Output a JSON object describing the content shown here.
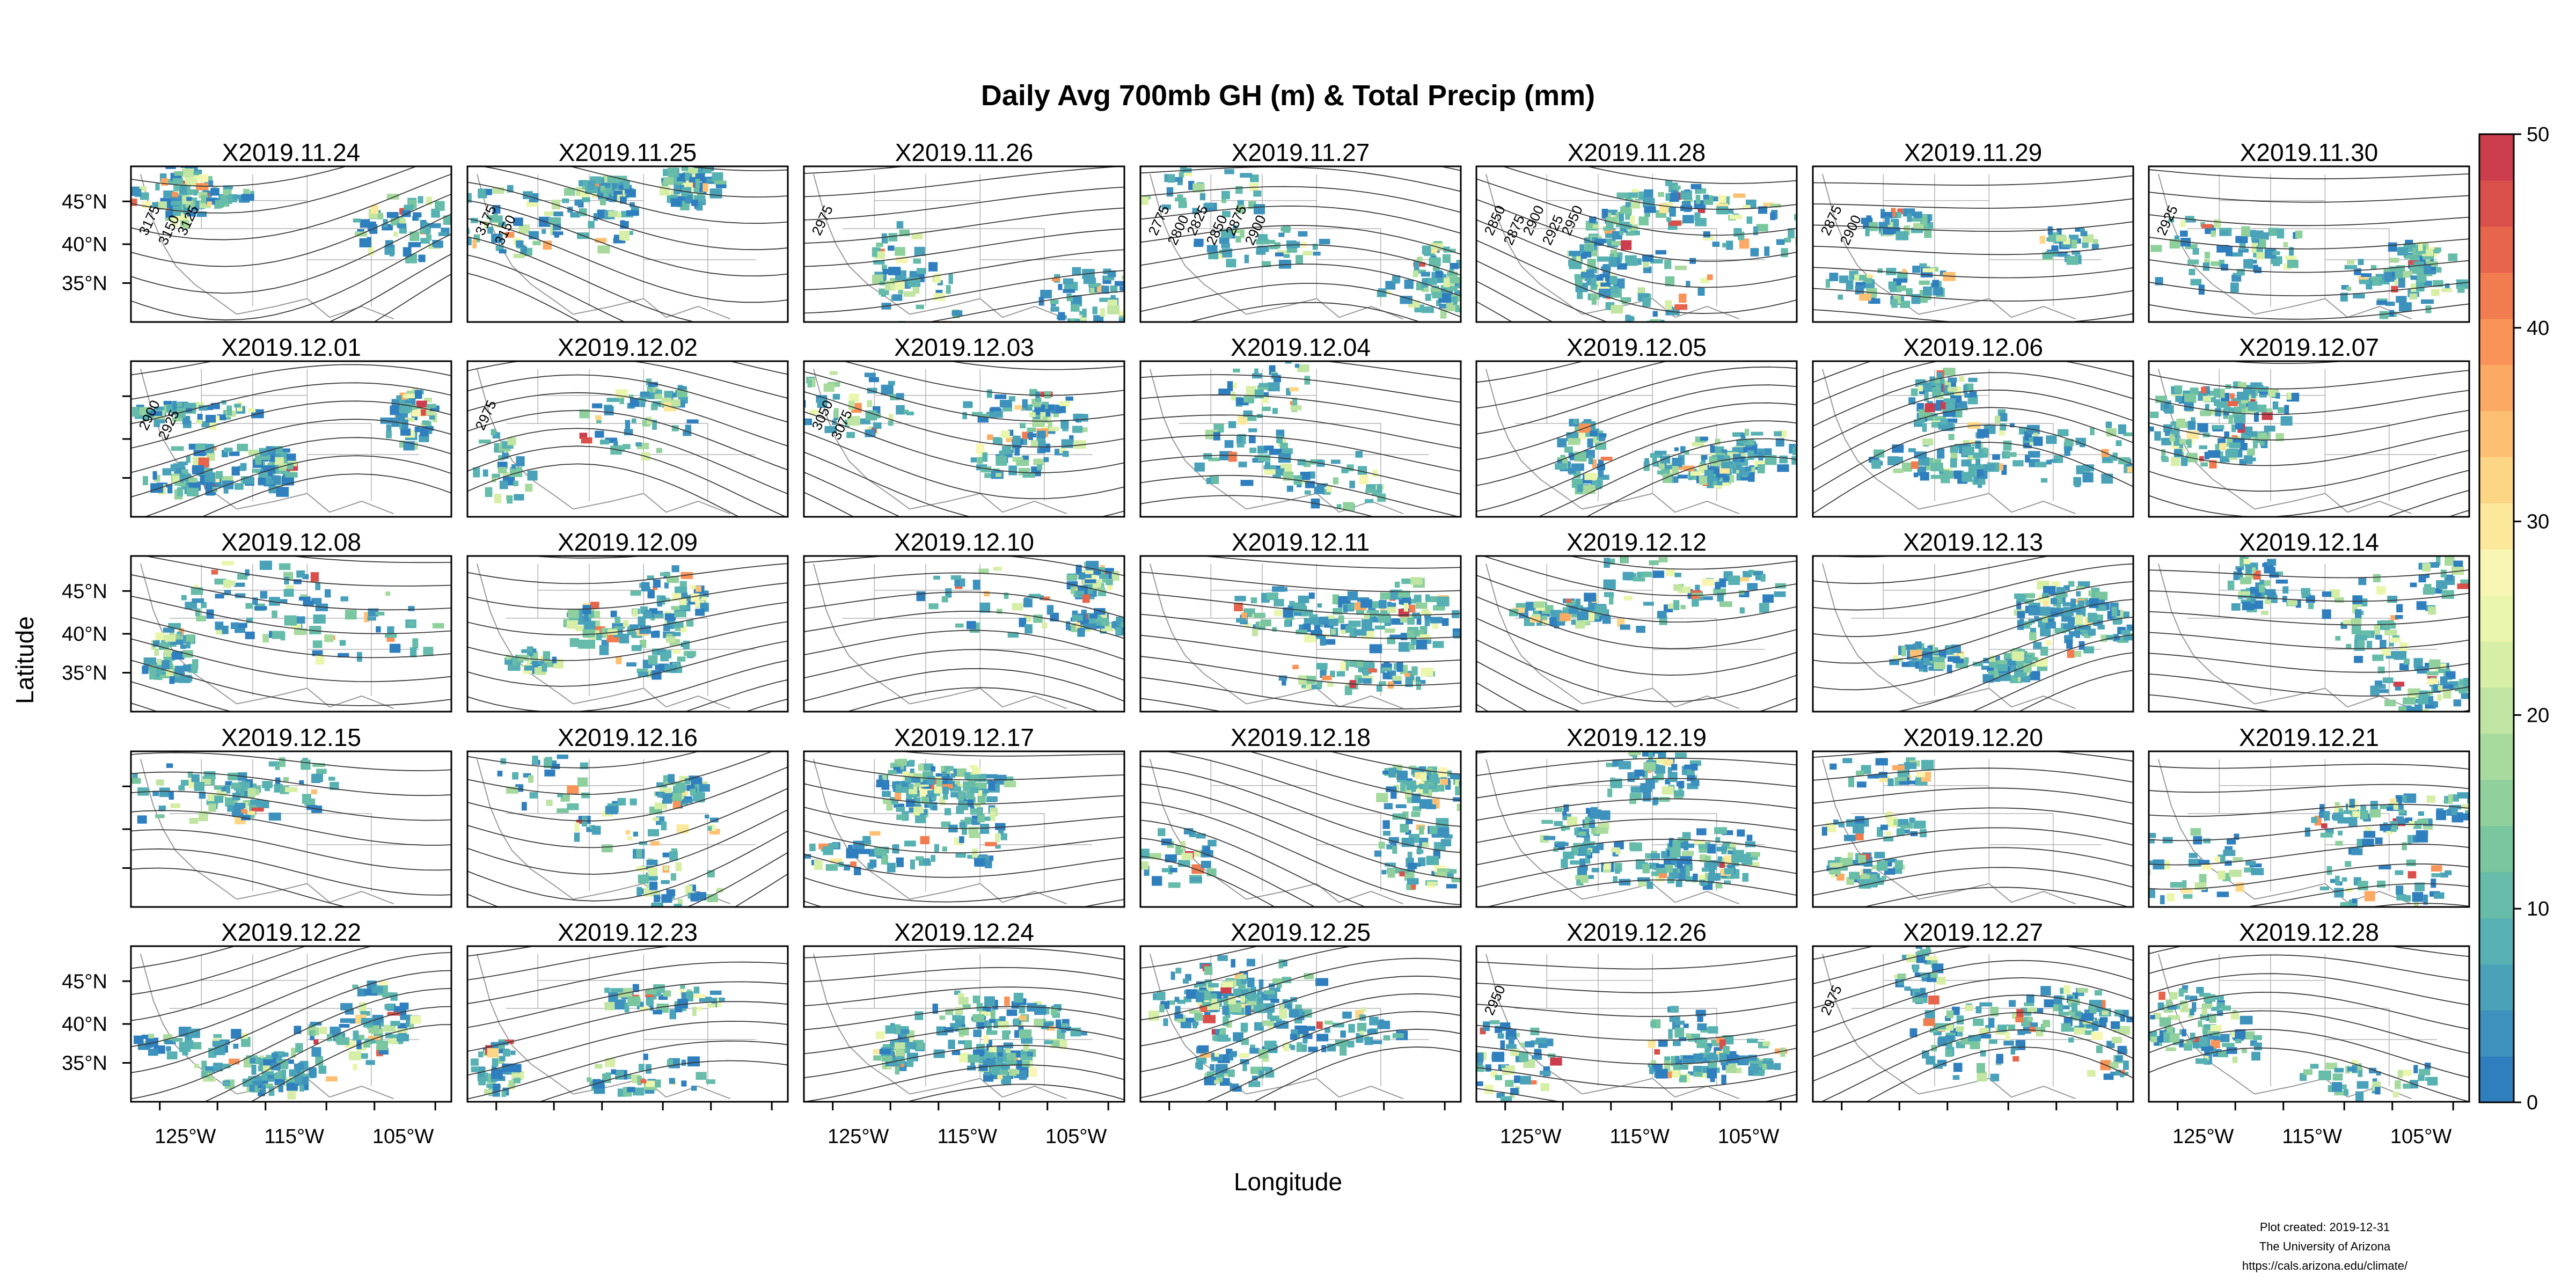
{
  "title": "Daily Avg 700mb GH (m) & Total Precip (mm)",
  "xlabel": "Longitude",
  "ylabel": "Latitude",
  "lat_ticks": [
    "45°N",
    "40°N",
    "35°N"
  ],
  "lon_ticks": [
    "125°W",
    "115°W",
    "105°W"
  ],
  "credit": [
    "Plot created: 2019-12-31",
    "The University of Arizona",
    "https://cals.arizona.edu/climate/"
  ],
  "colorbar": {
    "ticks": [
      "0",
      "10",
      "20",
      "30",
      "40",
      "50"
    ],
    "range": [
      0,
      50
    ],
    "colors": [
      "#2f7fbf",
      "#3d91bd",
      "#4aa2b9",
      "#57b1b2",
      "#66bca8",
      "#79c69f",
      "#90d09d",
      "#a8da9e",
      "#c0e4a1",
      "#d7eea6",
      "#ebf6ad",
      "#f8f6b2",
      "#fbe89a",
      "#fcd585",
      "#fdc073",
      "#fca964",
      "#f99357",
      "#f17c4f",
      "#e6654b",
      "#d9504b",
      "#cc3d4d"
    ]
  },
  "panels": [
    {
      "label": "X2019.11.24",
      "contours": [
        "3175",
        "3150",
        "3125"
      ]
    },
    {
      "label": "X2019.11.25",
      "contours": [
        "3175",
        "3150"
      ]
    },
    {
      "label": "X2019.11.26",
      "contours": [
        "2975"
      ]
    },
    {
      "label": "X2019.11.27",
      "contours": [
        "2775",
        "2800",
        "2825",
        "2850",
        "2875",
        "2900"
      ]
    },
    {
      "label": "X2019.11.28",
      "contours": [
        "2850",
        "2875",
        "2900",
        "2925",
        "2950"
      ]
    },
    {
      "label": "X2019.11.29",
      "contours": [
        "2875",
        "2900"
      ]
    },
    {
      "label": "X2019.11.30",
      "contours": [
        "2925"
      ]
    },
    {
      "label": "X2019.12.01",
      "contours": [
        "2900",
        "2925"
      ]
    },
    {
      "label": "X2019.12.02",
      "contours": [
        "2975"
      ]
    },
    {
      "label": "X2019.12.03",
      "contours": [
        "3050",
        "3075"
      ]
    },
    {
      "label": "X2019.12.04",
      "contours": []
    },
    {
      "label": "X2019.12.05",
      "contours": []
    },
    {
      "label": "X2019.12.06",
      "contours": []
    },
    {
      "label": "X2019.12.07",
      "contours": []
    },
    {
      "label": "X2019.12.08",
      "contours": []
    },
    {
      "label": "X2019.12.09",
      "contours": []
    },
    {
      "label": "X2019.12.10",
      "contours": []
    },
    {
      "label": "X2019.12.11",
      "contours": []
    },
    {
      "label": "X2019.12.12",
      "contours": []
    },
    {
      "label": "X2019.12.13",
      "contours": []
    },
    {
      "label": "X2019.12.14",
      "contours": []
    },
    {
      "label": "X2019.12.15",
      "contours": []
    },
    {
      "label": "X2019.12.16",
      "contours": []
    },
    {
      "label": "X2019.12.17",
      "contours": []
    },
    {
      "label": "X2019.12.18",
      "contours": []
    },
    {
      "label": "X2019.12.19",
      "contours": []
    },
    {
      "label": "X2019.12.20",
      "contours": []
    },
    {
      "label": "X2019.12.21",
      "contours": []
    },
    {
      "label": "X2019.12.22",
      "contours": []
    },
    {
      "label": "X2019.12.23",
      "contours": []
    },
    {
      "label": "X2019.12.24",
      "contours": []
    },
    {
      "label": "X2019.12.25",
      "contours": []
    },
    {
      "label": "X2019.12.26",
      "contours": [
        "2950"
      ]
    },
    {
      "label": "X2019.12.27",
      "contours": [
        "2975"
      ]
    },
    {
      "label": "X2019.12.28",
      "contours": []
    }
  ]
}
